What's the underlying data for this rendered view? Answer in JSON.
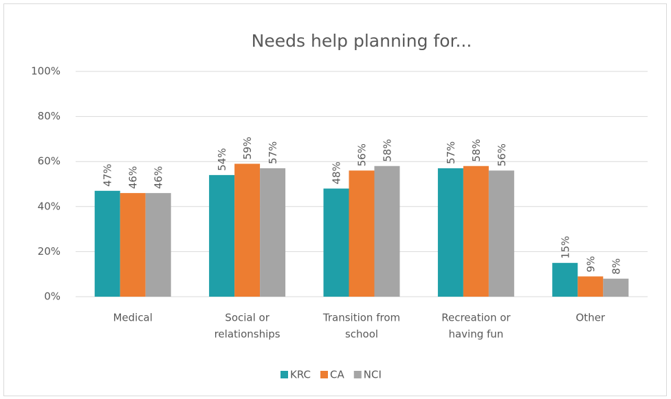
{
  "chart_data": {
    "type": "bar",
    "title": "Needs help planning for...",
    "categories": [
      [
        "Medical"
      ],
      [
        "Social or",
        "relationships"
      ],
      [
        "Transition from",
        "school"
      ],
      [
        "Recreation or",
        "having fun"
      ],
      [
        "Other"
      ]
    ],
    "series": [
      {
        "name": "KRC",
        "color": "#1f9fa8",
        "values": [
          47,
          54,
          48,
          57,
          15
        ],
        "value_labels": [
          "47%",
          "54%",
          "48%",
          "57%",
          "15%"
        ]
      },
      {
        "name": "CA",
        "color": "#ed7d31",
        "values": [
          46,
          59,
          56,
          58,
          9
        ],
        "value_labels": [
          "46%",
          "59%",
          "56%",
          "58%",
          "9%"
        ]
      },
      {
        "name": "NCI",
        "color": "#a5a5a5",
        "values": [
          46,
          57,
          58,
          56,
          8
        ],
        "value_labels": [
          "46%",
          "57%",
          "58%",
          "56%",
          "8%"
        ]
      }
    ],
    "ylim": [
      0,
      100
    ],
    "yticks": [
      {
        "value": 0,
        "label": "0%"
      },
      {
        "value": 20,
        "label": "20%"
      },
      {
        "value": 40,
        "label": "40%"
      },
      {
        "value": 60,
        "label": "60%"
      },
      {
        "value": 80,
        "label": "80%"
      },
      {
        "value": 100,
        "label": "100%"
      }
    ],
    "grid": true,
    "legend": "bottom"
  }
}
